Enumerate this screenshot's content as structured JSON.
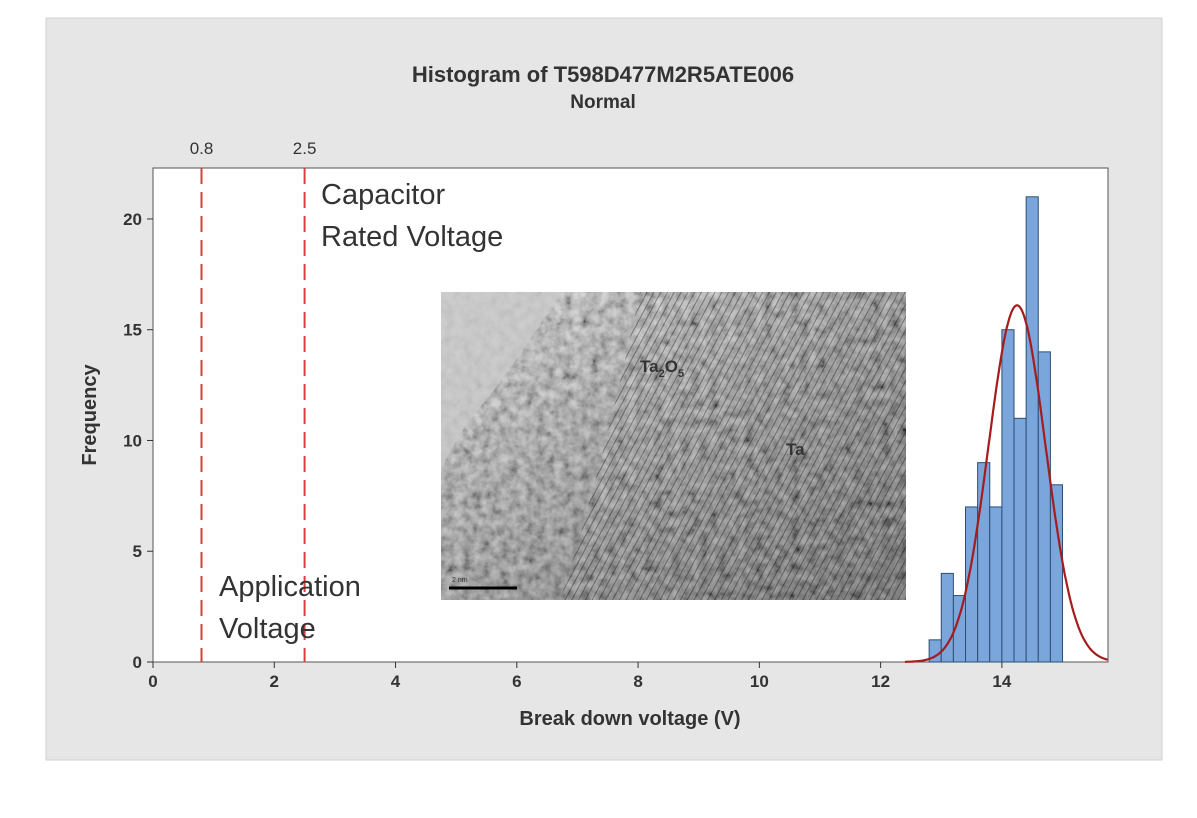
{
  "chart_data": {
    "type": "bar",
    "title": "Histogram of T598D477M2R5ATE006",
    "subtitle": "Normal",
    "xlabel": "Break down voltage (V)",
    "ylabel": "Frequency",
    "xlim": [
      0,
      15.75
    ],
    "ylim": [
      0,
      22.3
    ],
    "x_ticks": [
      "0",
      "2",
      "4",
      "6",
      "8",
      "10",
      "12",
      "14"
    ],
    "y_ticks": [
      "0",
      "5",
      "10",
      "15",
      "20"
    ],
    "grid": false,
    "bar_width": 0.2,
    "bars": [
      {
        "x": 12.9,
        "value": 1
      },
      {
        "x": 13.1,
        "value": 4
      },
      {
        "x": 13.3,
        "value": 3
      },
      {
        "x": 13.5,
        "value": 7
      },
      {
        "x": 13.7,
        "value": 9
      },
      {
        "x": 13.9,
        "value": 7
      },
      {
        "x": 14.1,
        "value": 15
      },
      {
        "x": 14.3,
        "value": 11
      },
      {
        "x": 14.5,
        "value": 21
      },
      {
        "x": 14.7,
        "value": 14
      },
      {
        "x": 14.9,
        "value": 8
      }
    ],
    "fit": {
      "distribution": "Normal",
      "mean": 14.25,
      "sd": 0.47,
      "peak": 16.1
    },
    "reference_lines": [
      {
        "x": 0.8,
        "label": "0.8",
        "annotation_lines": [
          "Application",
          "Voltage"
        ]
      },
      {
        "x": 2.5,
        "label": "2.5",
        "annotation_lines": [
          "Capacitor",
          "Rated Voltage"
        ]
      }
    ],
    "inset": {
      "labels": {
        "ta2o5_base": "Ta",
        "ta2o5_sub1": "2",
        "ta2o5_mid": "O",
        "ta2o5_sub2": "5",
        "ta": "Ta",
        "scale": "2 nm"
      }
    },
    "colors": {
      "bar_fill": "#7aa6dc",
      "bar_stroke": "#2f4d72",
      "fit_curve": "#a51c1c",
      "ref_line": "#d84040",
      "ref_label": "#a33636",
      "inset_label": "#ff2020",
      "frame_bg": "#e6e6e6"
    }
  }
}
